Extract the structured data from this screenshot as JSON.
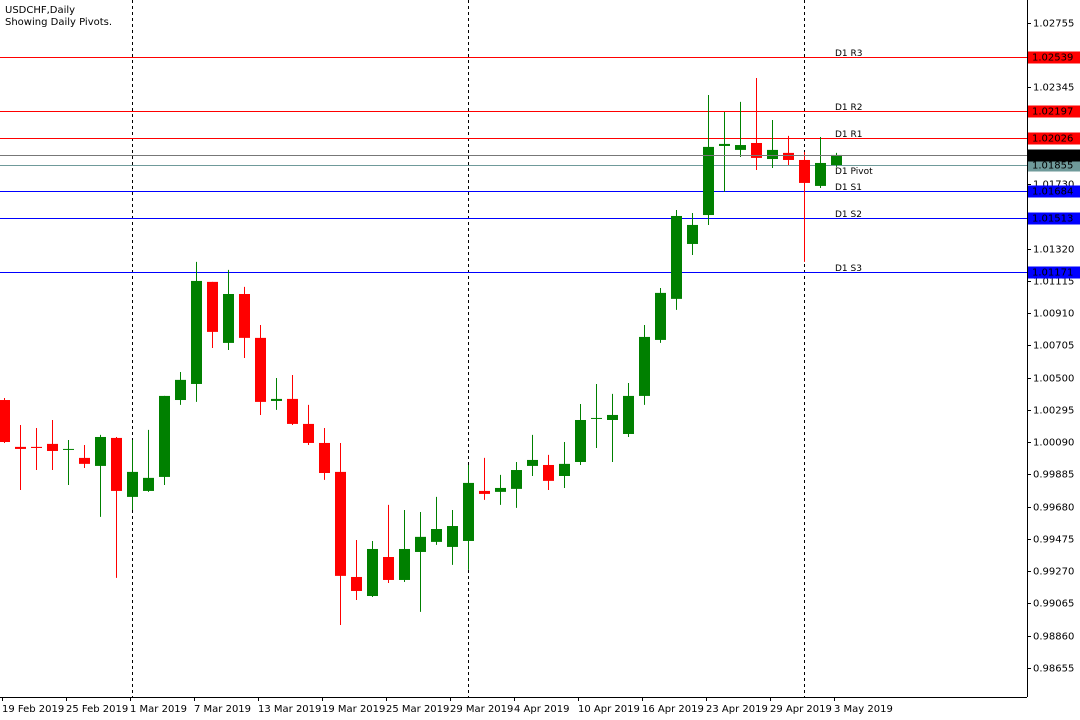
{
  "chart_data": {
    "type": "candlestick",
    "title": "USDCHF,Daily",
    "subtitle": "Showing Daily Pivots.",
    "categories": [
      "19 Feb 2019",
      null,
      null,
      null,
      "25 Feb 2019",
      null,
      null,
      null,
      "1 Mar 2019",
      null,
      null,
      null,
      "7 Mar 2019",
      null,
      null,
      null,
      "13 Mar 2019",
      null,
      null,
      null,
      "19 Mar 2019",
      null,
      null,
      null,
      "25 Mar 2019",
      null,
      null,
      null,
      "29 Mar 2019",
      null,
      null,
      null,
      "4 Apr 2019",
      null,
      null,
      null,
      "10 Apr 2019",
      null,
      null,
      null,
      "16 Apr 2019",
      null,
      null,
      null,
      "23 Apr 2019",
      null,
      null,
      null,
      "29 Apr 2019",
      null,
      null,
      null,
      "3 May 2019"
    ],
    "open": [
      1.00358,
      1.0006,
      1.0006,
      1.00079,
      1.00041,
      0.9999,
      0.99939,
      1.00117,
      0.99742,
      0.9978,
      0.99869,
      1.00358,
      1.0046,
      1.01109,
      1.00721,
      1.01032,
      1.00753,
      1.00352,
      1.00365,
      1.00206,
      1.00085,
      0.99901,
      0.99233,
      0.99112,
      0.9936,
      0.99214,
      0.99392,
      0.99456,
      0.99424,
      0.99462,
      0.9978,
      0.99774,
      0.99793,
      0.99939,
      0.99945,
      0.99875,
      0.99964,
      1.00244,
      1.00231,
      1.00142,
      1.00384,
      1.0074,
      1.01001,
      1.0135,
      1.01534,
      1.01973,
      1.01948,
      1.01992,
      1.0189,
      1.01929,
      1.01884,
      1.01719,
      1.01852
    ],
    "high": [
      1.00371,
      1.00199,
      1.0018,
      1.00231,
      1.00104,
      1.00072,
      1.00136,
      1.00123,
      1.00104,
      1.00168,
      1.00384,
      1.00536,
      1.01236,
      1.01109,
      1.01185,
      1.01077,
      1.00835,
      1.00498,
      1.00517,
      1.00327,
      1.0018,
      1.00085,
      0.99468,
      0.99462,
      0.99691,
      0.99659,
      0.99646,
      0.99742,
      0.99659,
      0.99945,
      0.9999,
      0.99882,
      0.99964,
      1.00136,
      1.00009,
      1.00091,
      1.00333,
      1.0046,
      1.00397,
      1.00466,
      1.00835,
      1.0107,
      1.01566,
      1.01547,
      1.02297,
      1.02189,
      1.02253,
      1.02405,
      1.02138,
      1.02037,
      1.01935,
      1.0203,
      1.01929
    ],
    "low": [
      1.00085,
      0.99786,
      0.99913,
      0.99913,
      0.99818,
      0.99926,
      0.99615,
      0.99227,
      0.99659,
      0.99774,
      0.99818,
      1.00327,
      1.00346,
      1.00689,
      1.00676,
      1.00625,
      1.00263,
      1.00295,
      1.00199,
      1.00072,
      0.9985,
      0.98928,
      0.99087,
      0.99106,
      0.99195,
      0.99201,
      0.99011,
      0.99437,
      0.9931,
      0.99278,
      0.99723,
      0.99691,
      0.99672,
      0.99875,
      0.99786,
      0.99799,
      0.99945,
      1.00053,
      0.99964,
      1.00123,
      1.00327,
      1.00721,
      1.00931,
      1.0128,
      1.01471,
      1.01681,
      1.01903,
      1.0182,
      1.01833,
      1.01852,
      1.01236,
      1.01706,
      1.0184
    ],
    "close": [
      1.00091,
      1.00047,
      1.00053,
      1.00034,
      1.00047,
      0.99952,
      1.00123,
      0.9978,
      0.99901,
      0.99863,
      1.00384,
      1.00486,
      1.01115,
      1.00791,
      1.01032,
      1.00753,
      1.00346,
      1.00365,
      1.00206,
      1.00085,
      0.99894,
      0.9924,
      0.99144,
      0.99411,
      0.99214,
      0.99411,
      0.99488,
      0.99538,
      0.99557,
      0.99831,
      0.99761,
      0.99799,
      0.99913,
      0.99977,
      0.99844,
      0.99952,
      1.00231,
      1.00244,
      1.00263,
      1.00384,
      1.00759,
      1.01039,
      1.01528,
      1.01471,
      1.01967,
      1.01986,
      1.01979,
      1.01897,
      1.01948,
      1.01884,
      1.01738,
      1.01865,
      1.01916
    ],
    "up_color": "#008000",
    "down_color": "#ff0000",
    "ylim": [
      0.9847,
      1.02901
    ],
    "yticks": [
      1.02755,
      1.02345,
      {
        "value": 1.0173,
        "label": "1.01730"
      },
      {
        "value": 1.0132,
        "label": "1.01320"
      },
      1.01115,
      {
        "value": 1.0091,
        "label": "1.00910"
      },
      1.00705,
      {
        "value": 1.005,
        "label": "1.00500"
      },
      1.00295,
      {
        "value": 1.0009,
        "label": "1.00090"
      },
      0.99885,
      {
        "value": 0.9968,
        "label": "0.99680"
      },
      0.99475,
      {
        "value": 0.9927,
        "label": "0.99270"
      },
      0.99065,
      {
        "value": 0.9886,
        "label": "0.98860"
      },
      0.98655
    ],
    "levels": [
      {
        "name": "D1 R3",
        "value": 1.02539,
        "color": "#ff0000"
      },
      {
        "name": "D1 R2",
        "value": 1.02197,
        "color": "#ff0000"
      },
      {
        "name": "D1 R1",
        "value": 1.02026,
        "color": "#ff0000"
      },
      {
        "name": "D1 Pivot",
        "value": 1.01855,
        "color": "#6f9a9a"
      },
      {
        "name": "D1 S1",
        "value": 1.01684,
        "color": "#0000ff"
      },
      {
        "name": "D1 S2",
        "value": 1.01513,
        "color": "#0000ff"
      },
      {
        "name": "D1 S3",
        "value": 1.01171,
        "color": "#0000ff"
      }
    ]
  }
}
